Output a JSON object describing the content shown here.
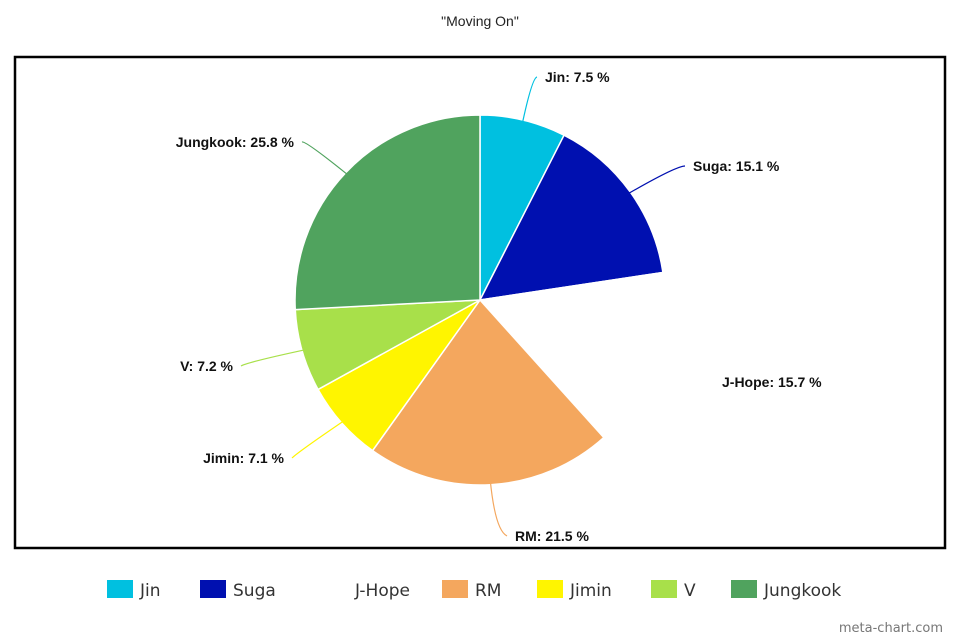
{
  "chart_data": {
    "type": "pie",
    "title": "\"Moving On\"",
    "slices": [
      {
        "name": "Jin",
        "value": 7.5,
        "label": "Jin: 7.5 %",
        "color": "#00C0E0"
      },
      {
        "name": "Suga",
        "value": 15.1,
        "label": "Suga: 15.1 %",
        "color": "#0010B0"
      },
      {
        "name": "J-Hope",
        "value": 15.7,
        "label": "J-Hope: 15.7 %",
        "color": "#FFFFFF"
      },
      {
        "name": "RM",
        "value": 21.5,
        "label": "RM: 21.5 %",
        "color": "#F4A75E"
      },
      {
        "name": "Jimin",
        "value": 7.1,
        "label": "Jimin: 7.1 %",
        "color": "#FFF500"
      },
      {
        "name": "V",
        "value": 7.2,
        "label": "V: 7.2 %",
        "color": "#A8E04A"
      },
      {
        "name": "Jungkook",
        "value": 25.8,
        "label": "Jungkook: 25.8 %",
        "color": "#50A35E"
      }
    ],
    "legend_position": "bottom"
  },
  "watermark": "meta-chart.com"
}
